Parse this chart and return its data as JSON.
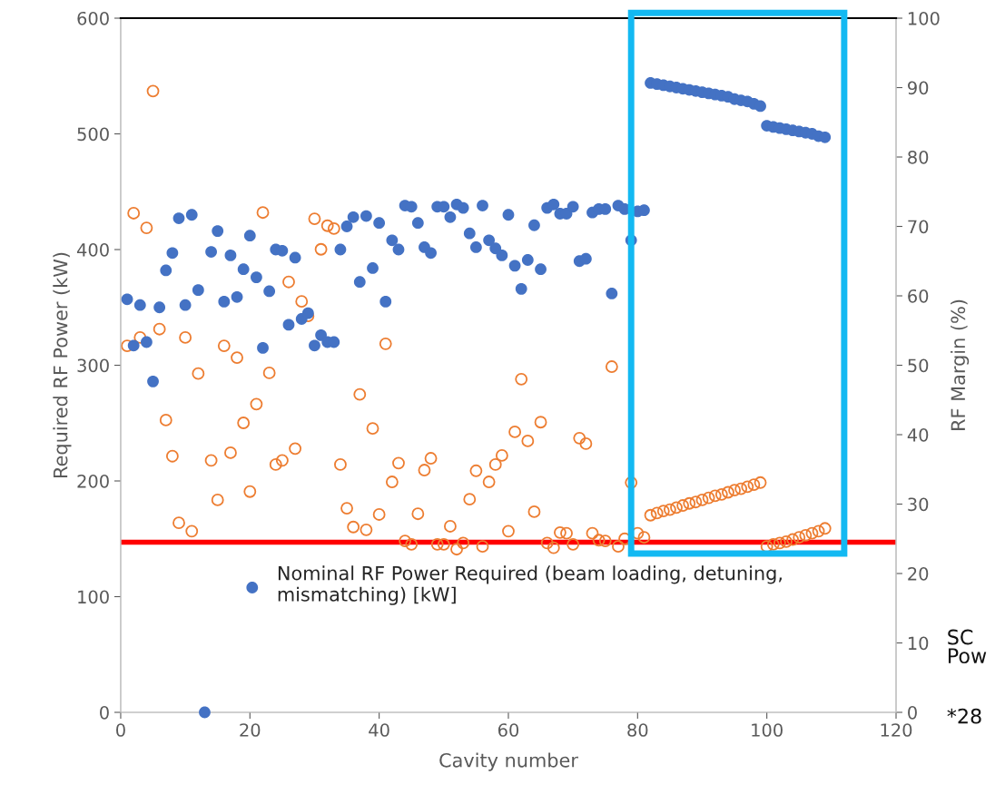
{
  "chart_data": {
    "type": "scatter",
    "xlabel": "Cavity number",
    "ylabel": "Required RF Power (kW)",
    "y2label": "RF Margin (%)",
    "x": [
      1,
      2,
      3,
      4,
      5,
      6,
      7,
      8,
      9,
      10,
      11,
      12,
      13,
      14,
      15,
      16,
      17,
      18,
      19,
      20,
      21,
      22,
      23,
      24,
      25,
      26,
      27,
      28,
      29,
      30,
      31,
      32,
      33,
      34,
      35,
      36,
      37,
      38,
      39,
      40,
      41,
      42,
      43,
      44,
      45,
      46,
      47,
      48,
      49,
      50,
      51,
      52,
      53,
      54,
      55,
      56,
      57,
      58,
      59,
      60,
      61,
      62,
      63,
      64,
      65,
      66,
      67,
      68,
      69,
      70,
      71,
      72,
      73,
      74,
      75,
      76,
      77,
      78,
      79,
      80,
      81,
      82,
      83,
      84,
      85,
      86,
      87,
      88,
      89,
      90,
      91,
      92,
      93,
      94,
      95,
      96,
      97,
      98,
      99,
      100,
      101,
      102,
      103,
      104,
      105,
      106,
      107,
      108,
      109
    ],
    "series": [
      {
        "name": "Nominal RF Power Required (beam loading, detuning,\nmismatching) [kW]",
        "color": "#4472c4",
        "values": [
          357,
          317,
          352,
          320,
          286,
          350,
          382,
          397,
          427,
          352,
          430,
          365,
          0,
          398,
          416,
          355,
          395,
          359,
          383,
          412,
          376,
          315,
          364,
          400,
          399,
          335,
          393,
          340,
          345,
          317,
          326,
          320,
          320,
          400,
          420,
          428,
          372,
          429,
          384,
          423,
          355,
          408,
          400,
          438,
          437,
          423,
          402,
          397,
          437,
          437,
          428,
          439,
          436,
          414,
          402,
          438,
          408,
          401,
          395,
          430,
          386,
          366,
          391,
          421,
          383,
          436,
          439,
          431,
          431,
          437,
          390,
          392,
          432,
          435,
          435,
          362,
          438,
          435,
          408,
          433,
          434,
          544,
          543,
          542,
          541,
          540,
          539,
          538,
          537,
          536,
          535,
          534,
          533,
          532,
          530,
          529,
          528,
          526,
          524,
          507,
          506,
          505,
          504,
          503,
          502,
          501,
          500,
          498,
          497
        ]
      },
      {
        "color": "#ed7d31",
        "axis": "y2",
        "values": [
          52.8,
          71.9,
          54.0,
          69.8,
          89.5,
          55.2,
          42.1,
          36.9,
          27.3,
          54.0,
          26.1,
          48.8,
          null,
          36.3,
          30.6,
          52.8,
          37.4,
          51.1,
          41.7,
          31.8,
          44.4,
          72.0,
          48.9,
          35.7,
          36.3,
          62.0,
          38.0,
          59.2,
          57.1,
          71.1,
          66.7,
          70.1,
          69.7,
          35.7,
          29.4,
          26.7,
          45.8,
          26.3,
          40.9,
          28.5,
          53.1,
          33.2,
          35.9,
          24.7,
          24.2,
          28.6,
          34.9,
          36.6,
          24.2,
          24.2,
          26.8,
          23.5,
          24.4,
          30.7,
          34.8,
          23.9,
          33.2,
          35.7,
          37.0,
          26.1,
          40.4,
          48.0,
          39.1,
          28.9,
          41.8,
          24.4,
          23.7,
          25.9,
          25.8,
          24.2,
          39.5,
          38.7,
          25.8,
          24.8,
          24.7,
          49.8,
          23.9,
          25.0,
          33.1,
          25.8,
          25.2,
          28.4,
          28.7,
          29.0,
          29.2,
          29.5,
          29.8,
          30.1,
          30.3,
          30.6,
          30.9,
          31.2,
          31.4,
          31.7,
          32.0,
          32.2,
          32.5,
          32.8,
          33.1,
          23.9,
          24.2,
          24.4,
          24.6,
          24.9,
          25.2,
          25.5,
          25.8,
          26.1,
          26.5
        ]
      }
    ],
    "xlim": [
      0,
      120
    ],
    "xticks": [
      0,
      20,
      40,
      60,
      80,
      100,
      120
    ],
    "ylim": [
      0,
      600
    ],
    "yticks": [
      0,
      100,
      200,
      300,
      400,
      500,
      600
    ],
    "y2lim": [
      0,
      100
    ],
    "y2ticks": [
      0,
      10,
      20,
      30,
      40,
      50,
      60,
      70,
      80,
      90,
      100
    ],
    "ref_lines": [
      {
        "axis": "y2",
        "value": 24.5,
        "color": "#ff0000"
      }
    ],
    "marker": "circle",
    "grid": false,
    "legend": "bottom",
    "annotations": [
      "SC\nPow",
      "*28"
    ]
  }
}
